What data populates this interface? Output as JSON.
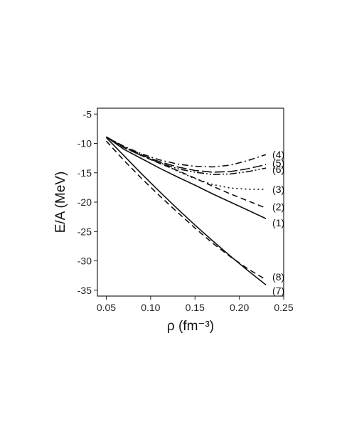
{
  "chart_data": {
    "type": "line",
    "title": "",
    "xlabel": "ρ (fm⁻³)",
    "ylabel": "E/A (MeV)",
    "xlim": [
      0.04,
      0.25
    ],
    "ylim": [
      -36,
      -4
    ],
    "x_ticks": [
      "0.05",
      "0.10",
      "0.15",
      "0.20",
      "0.25"
    ],
    "y_ticks": [
      "-5",
      "-10",
      "-15",
      "-20",
      "-25",
      "-30",
      "-35"
    ],
    "x_tick_values": [
      0.05,
      0.1,
      0.15,
      0.2,
      0.25
    ],
    "y_tick_values": [
      -5,
      -10,
      -15,
      -20,
      -25,
      -30,
      -35
    ],
    "grid": false,
    "legend": "none",
    "series": [
      {
        "name": "(1)",
        "style": "solid",
        "points": [
          [
            0.05,
            -8.9
          ],
          [
            0.07,
            -11.0
          ],
          [
            0.09,
            -12.6
          ],
          [
            0.11,
            -14.2
          ],
          [
            0.13,
            -15.7
          ],
          [
            0.15,
            -17.1
          ],
          [
            0.17,
            -18.6
          ],
          [
            0.19,
            -20.0
          ],
          [
            0.21,
            -21.4
          ],
          [
            0.23,
            -22.8
          ]
        ]
      },
      {
        "name": "(2)",
        "style": "dashed",
        "points": [
          [
            0.05,
            -8.9
          ],
          [
            0.07,
            -10.7
          ],
          [
            0.09,
            -12.1
          ],
          [
            0.11,
            -13.4
          ],
          [
            0.13,
            -14.6
          ],
          [
            0.15,
            -15.9
          ],
          [
            0.17,
            -17.3
          ],
          [
            0.19,
            -18.6
          ],
          [
            0.21,
            -19.8
          ],
          [
            0.23,
            -21.0
          ]
        ]
      },
      {
        "name": "(3)",
        "style": "dotted",
        "points": [
          [
            0.05,
            -8.9
          ],
          [
            0.07,
            -10.6
          ],
          [
            0.09,
            -11.9
          ],
          [
            0.11,
            -13.2
          ],
          [
            0.13,
            -14.7
          ],
          [
            0.15,
            -16.0
          ],
          [
            0.17,
            -17.0
          ],
          [
            0.19,
            -17.6
          ],
          [
            0.21,
            -17.8
          ],
          [
            0.23,
            -17.8
          ]
        ]
      },
      {
        "name": "(4)",
        "style": "dashdot",
        "points": [
          [
            0.05,
            -8.9
          ],
          [
            0.07,
            -10.5
          ],
          [
            0.09,
            -11.8
          ],
          [
            0.11,
            -12.8
          ],
          [
            0.13,
            -13.5
          ],
          [
            0.15,
            -13.9
          ],
          [
            0.17,
            -14.0
          ],
          [
            0.19,
            -13.7
          ],
          [
            0.21,
            -12.9
          ],
          [
            0.23,
            -11.9
          ]
        ]
      },
      {
        "name": "(5)",
        "style": "longdash",
        "points": [
          [
            0.05,
            -8.9
          ],
          [
            0.07,
            -10.6
          ],
          [
            0.09,
            -12.0
          ],
          [
            0.11,
            -13.1
          ],
          [
            0.13,
            -14.0
          ],
          [
            0.15,
            -14.6
          ],
          [
            0.17,
            -14.9
          ],
          [
            0.19,
            -14.8
          ],
          [
            0.21,
            -14.3
          ],
          [
            0.23,
            -13.6
          ]
        ]
      },
      {
        "name": "(6)",
        "style": "dashdotdot",
        "points": [
          [
            0.05,
            -8.9
          ],
          [
            0.07,
            -10.7
          ],
          [
            0.09,
            -12.1
          ],
          [
            0.11,
            -13.3
          ],
          [
            0.13,
            -14.3
          ],
          [
            0.15,
            -14.9
          ],
          [
            0.17,
            -15.3
          ],
          [
            0.19,
            -15.2
          ],
          [
            0.21,
            -14.8
          ],
          [
            0.23,
            -14.2
          ]
        ]
      },
      {
        "name": "(7)",
        "style": "solid",
        "points": [
          [
            0.05,
            -9.0
          ],
          [
            0.07,
            -12.1
          ],
          [
            0.09,
            -15.2
          ],
          [
            0.11,
            -18.2
          ],
          [
            0.13,
            -21.1
          ],
          [
            0.15,
            -23.9
          ],
          [
            0.17,
            -26.6
          ],
          [
            0.19,
            -29.2
          ],
          [
            0.21,
            -31.7
          ],
          [
            0.23,
            -34.1
          ]
        ]
      },
      {
        "name": "(8)",
        "style": "dashed",
        "points": [
          [
            0.05,
            -9.6
          ],
          [
            0.07,
            -12.9
          ],
          [
            0.09,
            -16.0
          ],
          [
            0.11,
            -18.9
          ],
          [
            0.13,
            -21.7
          ],
          [
            0.15,
            -24.4
          ],
          [
            0.17,
            -27.0
          ],
          [
            0.19,
            -29.3
          ],
          [
            0.21,
            -31.4
          ],
          [
            0.23,
            -33.2
          ]
        ]
      }
    ],
    "colors": {
      "line": "#111111",
      "axis": "#222222",
      "background": "#ffffff"
    }
  }
}
